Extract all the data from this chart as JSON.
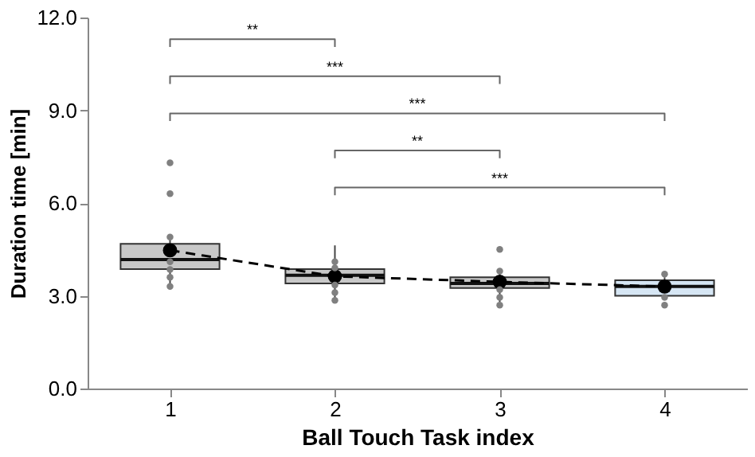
{
  "chart_data": {
    "type": "box",
    "xlabel": "Ball Touch Task index",
    "ylabel": "Duration time [min]",
    "categories": [
      "1",
      "2",
      "3",
      "4"
    ],
    "ylim": [
      0,
      12
    ],
    "yticks": [
      {
        "value": 0,
        "label": "0.0"
      },
      {
        "value": 3,
        "label": "3.0"
      },
      {
        "value": 6,
        "label": "6.0"
      },
      {
        "value": 9,
        "label": "9.0"
      },
      {
        "value": 12,
        "label": "12.0"
      }
    ],
    "grid": false,
    "boxes": [
      {
        "low": 3.2,
        "q1": 3.86,
        "median": 4.17,
        "q3": 4.68,
        "high": 4.98
      },
      {
        "low": 2.85,
        "q1": 3.4,
        "median": 3.66,
        "q3": 3.86,
        "high": 4.63
      },
      {
        "low": 2.8,
        "q1": 3.25,
        "median": 3.4,
        "q3": 3.6,
        "high": 3.8
      },
      {
        "low": 2.9,
        "q1": 3.0,
        "median": 3.3,
        "q3": 3.5,
        "high": 3.6
      }
    ],
    "colors": [
      "#c8c8c8",
      "#c8c8c8",
      "#c8c8c8",
      "#d6e6f4"
    ],
    "series": [
      {
        "type": "line",
        "color": "#000000",
        "x": [
          "1",
          "2",
          "3",
          "4"
        ],
        "values": [
          4.47,
          3.63,
          3.45,
          3.3
        ],
        "line_style": "dashed",
        "marker": "none"
      },
      {
        "type": "line",
        "color": "#666666",
        "x": [
          "1",
          "1",
          "2",
          "2"
        ],
        "values": [
          11.05,
          11.3,
          11.3,
          11.05
        ],
        "marker": "none"
      },
      {
        "type": "line",
        "color": "#666666",
        "x": [
          "1",
          "1",
          "3",
          "3"
        ],
        "values": [
          9.85,
          10.1,
          10.1,
          9.85
        ],
        "marker": "none"
      },
      {
        "type": "line",
        "color": "#666666",
        "x": [
          "1",
          "1",
          "4",
          "4"
        ],
        "values": [
          8.65,
          8.9,
          8.9,
          8.65
        ],
        "marker": "none"
      },
      {
        "type": "line",
        "color": "#666666",
        "x": [
          "2",
          "2",
          "3",
          "3"
        ],
        "values": [
          7.45,
          7.7,
          7.7,
          7.45
        ],
        "marker": "none"
      },
      {
        "type": "line",
        "color": "#666666",
        "x": [
          "2",
          "2",
          "4",
          "4"
        ],
        "values": [
          6.25,
          6.5,
          6.5,
          6.25
        ],
        "marker": "none"
      },
      {
        "type": "scatter",
        "color": "#000000",
        "x": [
          "1",
          "2",
          "3",
          "4"
        ],
        "values": [
          4.47,
          3.63,
          3.45,
          3.3
        ],
        "marker": "circle"
      },
      {
        "type": "scatter",
        "color": "#808080",
        "x": [
          "1",
          "1",
          "1",
          "1",
          "1",
          "1",
          "1",
          "2",
          "2",
          "2",
          "2",
          "2",
          "3",
          "3",
          "3",
          "3",
          "3",
          "4",
          "4",
          "4"
        ],
        "values": [
          7.3,
          6.3,
          4.9,
          4.1,
          3.85,
          3.6,
          3.3,
          4.1,
          3.9,
          3.35,
          3.1,
          2.85,
          4.5,
          3.8,
          3.2,
          2.95,
          2.7,
          3.7,
          2.95,
          2.7
        ],
        "marker": "circle"
      }
    ],
    "annotations": [
      "**",
      "***",
      "***",
      "**",
      "***"
    ]
  }
}
